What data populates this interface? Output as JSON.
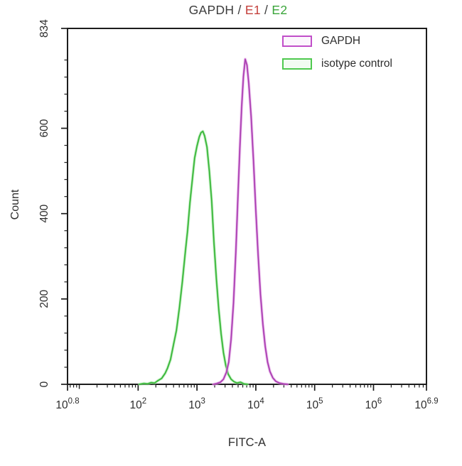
{
  "title": {
    "segments": [
      {
        "text": "GAPDH / ",
        "color": "#3c3c3c"
      },
      {
        "text": "E1",
        "color": "#c4403c"
      },
      {
        "text": " / ",
        "color": "#3c3c3c"
      },
      {
        "text": "E2",
        "color": "#3aa53a"
      }
    ]
  },
  "legend": {
    "items": [
      {
        "label": "GAPDH",
        "stroke": "#c14fc9",
        "fill": "#fcf6fd"
      },
      {
        "label": "isotype control",
        "stroke": "#4fc94f",
        "fill": "#f2fbf2"
      }
    ]
  },
  "axes": {
    "x_label": "FITC-A",
    "y_label": "Count",
    "x_scale": "log10",
    "x_range_log10": [
      0.8,
      6.9
    ],
    "y_range": [
      0,
      834
    ],
    "x_major_ticks": [
      {
        "base": "10",
        "exp": "0.8",
        "log": 0.8
      },
      {
        "base": "10",
        "exp": "2",
        "log": 2
      },
      {
        "base": "10",
        "exp": "3",
        "log": 3
      },
      {
        "base": "10",
        "exp": "4",
        "log": 4
      },
      {
        "base": "10",
        "exp": "5",
        "log": 5
      },
      {
        "base": "10",
        "exp": "6",
        "log": 6
      },
      {
        "base": "10",
        "exp": "6.9",
        "log": 6.9
      }
    ],
    "y_major_ticks": [
      {
        "label": "0",
        "value": 0
      },
      {
        "label": "200",
        "value": 200
      },
      {
        "label": "400",
        "value": 400
      },
      {
        "label": "600",
        "value": 600
      },
      {
        "label": "834",
        "value": 834
      }
    ],
    "y_minor_step": 40,
    "frame_color": "#1c1c1c",
    "text_color": "#2d2d2d"
  },
  "chart_data": {
    "type": "line",
    "title": "GAPDH / E1 / E2",
    "xlabel": "FITC-A",
    "ylabel": "Count",
    "x_scale": "log10",
    "xlim_log10": [
      0.8,
      6.9
    ],
    "ylim": [
      0,
      834
    ],
    "legend_position": "top-right",
    "grid": false,
    "series": [
      {
        "name": "isotype control",
        "color": "#5fce5f",
        "core_color": "#35b135",
        "glow_color": "#b7ecb7",
        "peak_log10_x": 3.09,
        "peak_count": 593,
        "points": [
          [
            2.02,
            0
          ],
          [
            2.1,
            2
          ],
          [
            2.16,
            1
          ],
          [
            2.22,
            4
          ],
          [
            2.28,
            3
          ],
          [
            2.34,
            9
          ],
          [
            2.4,
            14
          ],
          [
            2.46,
            26
          ],
          [
            2.5,
            38
          ],
          [
            2.55,
            58
          ],
          [
            2.6,
            92
          ],
          [
            2.65,
            126
          ],
          [
            2.7,
            178
          ],
          [
            2.75,
            238
          ],
          [
            2.8,
            308
          ],
          [
            2.84,
            360
          ],
          [
            2.88,
            425
          ],
          [
            2.92,
            478
          ],
          [
            2.96,
            530
          ],
          [
            3.0,
            558
          ],
          [
            3.04,
            580
          ],
          [
            3.07,
            590
          ],
          [
            3.1,
            593
          ],
          [
            3.13,
            582
          ],
          [
            3.17,
            556
          ],
          [
            3.21,
            500
          ],
          [
            3.25,
            430
          ],
          [
            3.29,
            330
          ],
          [
            3.33,
            245
          ],
          [
            3.37,
            175
          ],
          [
            3.41,
            118
          ],
          [
            3.45,
            74
          ],
          [
            3.49,
            44
          ],
          [
            3.53,
            24
          ],
          [
            3.58,
            12
          ],
          [
            3.63,
            6
          ],
          [
            3.68,
            3
          ],
          [
            3.74,
            5
          ],
          [
            3.8,
            1
          ],
          [
            3.86,
            0
          ]
        ]
      },
      {
        "name": "GAPDH",
        "color": "#c45ec9",
        "core_color": "#a53bad",
        "glow_color": "#e6b2e9",
        "peak_log10_x": 3.82,
        "peak_count": 762,
        "points": [
          [
            3.28,
            0
          ],
          [
            3.34,
            2
          ],
          [
            3.4,
            5
          ],
          [
            3.45,
            12
          ],
          [
            3.5,
            28
          ],
          [
            3.54,
            52
          ],
          [
            3.58,
            105
          ],
          [
            3.62,
            190
          ],
          [
            3.66,
            310
          ],
          [
            3.7,
            455
          ],
          [
            3.73,
            560
          ],
          [
            3.76,
            650
          ],
          [
            3.79,
            722
          ],
          [
            3.82,
            762
          ],
          [
            3.85,
            748
          ],
          [
            3.88,
            705
          ],
          [
            3.92,
            628
          ],
          [
            3.96,
            525
          ],
          [
            4.0,
            408
          ],
          [
            4.04,
            302
          ],
          [
            4.08,
            210
          ],
          [
            4.12,
            140
          ],
          [
            4.16,
            88
          ],
          [
            4.2,
            52
          ],
          [
            4.24,
            30
          ],
          [
            4.29,
            15
          ],
          [
            4.34,
            7
          ],
          [
            4.4,
            3
          ],
          [
            4.47,
            1
          ],
          [
            4.54,
            0
          ]
        ]
      }
    ]
  }
}
